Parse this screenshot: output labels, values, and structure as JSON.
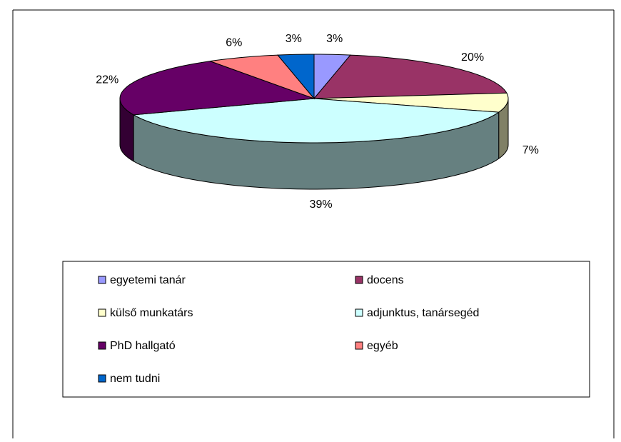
{
  "chart_data": {
    "type": "pie3d",
    "categories": [
      "egyetemi tanár",
      "docens",
      "külső munkatárs",
      "adjunktus, tanársegéd",
      "PhD hallgató",
      "egyéb",
      "nem tudni"
    ],
    "values": [
      3,
      20,
      7,
      39,
      22,
      6,
      3
    ],
    "value_labels": [
      "3%",
      "20%",
      "7%",
      "39%",
      "22%",
      "6%",
      "3%"
    ],
    "colors": [
      "#9999ff",
      "#993366",
      "#ffffcc",
      "#ccffff",
      "#660066",
      "#ff8080",
      "#0066cc"
    ],
    "legend": "bottom"
  }
}
